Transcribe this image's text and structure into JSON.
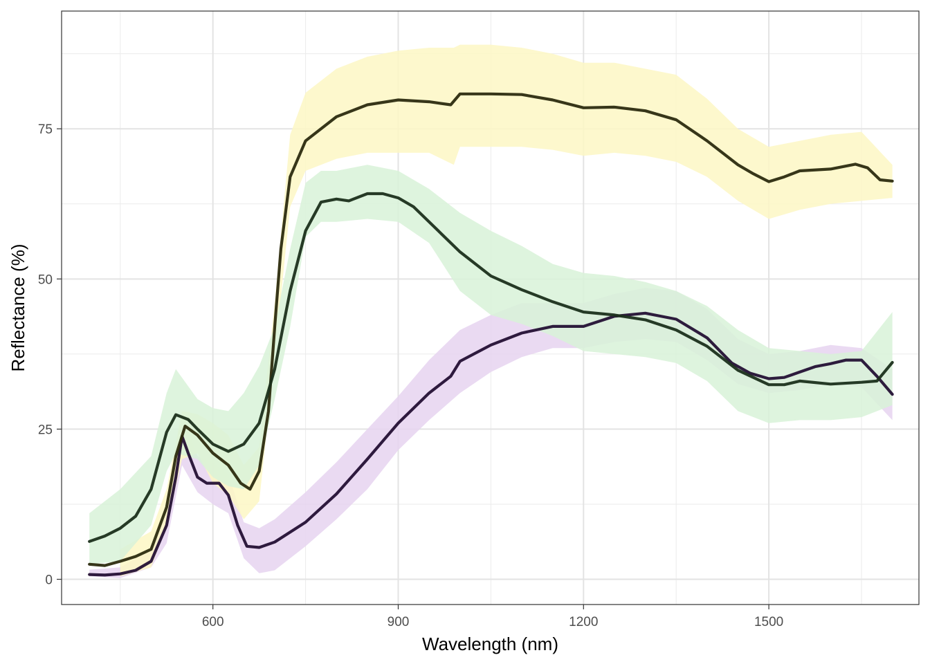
{
  "chart_data": {
    "type": "line",
    "title": "",
    "xlabel": "Wavelength (nm)",
    "ylabel": "Reflectance (%)",
    "xlim": [
      355,
      1743
    ],
    "ylim": [
      -4.2,
      94.6
    ],
    "x_ticks": [
      600,
      900,
      1200,
      1500
    ],
    "y_ticks": [
      0,
      25,
      50,
      75
    ],
    "grid": true,
    "legend": "none",
    "series": [
      {
        "color": "#241034",
        "ribbon_color": "#e6d3f0",
        "points": [
          [
            400,
            0.8
          ],
          [
            425,
            0.7
          ],
          [
            450,
            0.9
          ],
          [
            475,
            1.5
          ],
          [
            500,
            3.0
          ],
          [
            525,
            9.0
          ],
          [
            540,
            17.0
          ],
          [
            550,
            23.8
          ],
          [
            560,
            21.0
          ],
          [
            575,
            17.0
          ],
          [
            590,
            16.0
          ],
          [
            610,
            16.0
          ],
          [
            625,
            14.0
          ],
          [
            640,
            9.0
          ],
          [
            655,
            5.5
          ],
          [
            675,
            5.3
          ],
          [
            700,
            6.2
          ],
          [
            750,
            9.5
          ],
          [
            800,
            14.2
          ],
          [
            850,
            20.0
          ],
          [
            900,
            26.0
          ],
          [
            950,
            31.0
          ],
          [
            985,
            33.8
          ],
          [
            1000,
            36.3
          ],
          [
            1050,
            39.0
          ],
          [
            1100,
            41.0
          ],
          [
            1150,
            42.1
          ],
          [
            1200,
            42.1
          ],
          [
            1250,
            43.8
          ],
          [
            1300,
            44.3
          ],
          [
            1350,
            43.3
          ],
          [
            1400,
            40.2
          ],
          [
            1440,
            36.0
          ],
          [
            1470,
            34.3
          ],
          [
            1500,
            33.4
          ],
          [
            1525,
            33.6
          ],
          [
            1550,
            34.5
          ],
          [
            1575,
            35.4
          ],
          [
            1600,
            35.9
          ],
          [
            1625,
            36.5
          ],
          [
            1650,
            36.5
          ],
          [
            1675,
            33.8
          ],
          [
            1700,
            30.8
          ]
        ],
        "band": [
          [
            400,
            0.5,
            1.6
          ],
          [
            450,
            0.2,
            2.0
          ],
          [
            500,
            2.0,
            5.0
          ],
          [
            525,
            6.0,
            12.0
          ],
          [
            550,
            19.0,
            28.0
          ],
          [
            575,
            14.5,
            20.5
          ],
          [
            600,
            12.5,
            19.5
          ],
          [
            625,
            11.0,
            17.5
          ],
          [
            650,
            3.5,
            9.5
          ],
          [
            675,
            1.0,
            8.5
          ],
          [
            700,
            1.5,
            10.0
          ],
          [
            750,
            5.5,
            14.5
          ],
          [
            800,
            10.0,
            19.5
          ],
          [
            850,
            15.0,
            25.0
          ],
          [
            900,
            21.5,
            30.5
          ],
          [
            950,
            26.5,
            36.5
          ],
          [
            1000,
            31.0,
            41.5
          ],
          [
            1050,
            34.5,
            44.0
          ],
          [
            1100,
            37.0,
            46.0
          ],
          [
            1150,
            38.5,
            46.0
          ],
          [
            1200,
            38.5,
            46.0
          ],
          [
            1250,
            39.5,
            47.5
          ],
          [
            1300,
            40.0,
            48.5
          ],
          [
            1350,
            39.5,
            48.0
          ],
          [
            1400,
            36.5,
            45.0
          ],
          [
            1450,
            32.5,
            40.0
          ],
          [
            1500,
            31.0,
            37.5
          ],
          [
            1550,
            31.5,
            38.0
          ],
          [
            1600,
            32.5,
            39.0
          ],
          [
            1650,
            32.0,
            38.5
          ],
          [
            1700,
            26.5,
            35.0
          ]
        ]
      },
      {
        "color": "#2c2b0f",
        "ribbon_color": "#fdf7c4",
        "points": [
          [
            400,
            2.5
          ],
          [
            425,
            2.3
          ],
          [
            450,
            3.0
          ],
          [
            475,
            3.8
          ],
          [
            500,
            5.0
          ],
          [
            525,
            12.0
          ],
          [
            540,
            20.5
          ],
          [
            555,
            25.5
          ],
          [
            575,
            24.0
          ],
          [
            600,
            21.0
          ],
          [
            625,
            19.0
          ],
          [
            645,
            16.0
          ],
          [
            660,
            15.0
          ],
          [
            675,
            18.0
          ],
          [
            690,
            28.0
          ],
          [
            700,
            42.0
          ],
          [
            710,
            55.0
          ],
          [
            725,
            67.0
          ],
          [
            750,
            73.0
          ],
          [
            800,
            77.0
          ],
          [
            850,
            79.0
          ],
          [
            900,
            79.8
          ],
          [
            950,
            79.5
          ],
          [
            985,
            79.0
          ],
          [
            1000,
            80.8
          ],
          [
            1050,
            80.8
          ],
          [
            1100,
            80.7
          ],
          [
            1150,
            79.8
          ],
          [
            1200,
            78.5
          ],
          [
            1250,
            78.6
          ],
          [
            1300,
            78.0
          ],
          [
            1350,
            76.5
          ],
          [
            1400,
            73.0
          ],
          [
            1450,
            69.0
          ],
          [
            1475,
            67.5
          ],
          [
            1500,
            66.2
          ],
          [
            1525,
            67.0
          ],
          [
            1550,
            68.0
          ],
          [
            1600,
            68.3
          ],
          [
            1640,
            69.1
          ],
          [
            1660,
            68.5
          ],
          [
            1680,
            66.5
          ],
          [
            1700,
            66.3
          ]
        ],
        "band": [
          [
            450,
            0.5,
            5.0
          ],
          [
            500,
            2.0,
            8.0
          ],
          [
            525,
            9.0,
            15.0
          ],
          [
            550,
            20.0,
            28.0
          ],
          [
            575,
            21.0,
            27.5
          ],
          [
            600,
            16.0,
            26.0
          ],
          [
            625,
            14.0,
            24.0
          ],
          [
            650,
            10.0,
            19.0
          ],
          [
            675,
            13.0,
            22.0
          ],
          [
            700,
            37.0,
            46.0
          ],
          [
            725,
            62.0,
            74.0
          ],
          [
            750,
            68.0,
            81.0
          ],
          [
            800,
            70.0,
            85.0
          ],
          [
            850,
            71.0,
            87.0
          ],
          [
            900,
            71.0,
            88.0
          ],
          [
            950,
            71.0,
            88.5
          ],
          [
            990,
            69.0,
            88.5
          ],
          [
            1000,
            72.0,
            89.0
          ],
          [
            1050,
            72.0,
            89.0
          ],
          [
            1100,
            72.0,
            88.5
          ],
          [
            1150,
            71.5,
            87.5
          ],
          [
            1200,
            70.5,
            86.0
          ],
          [
            1250,
            71.0,
            86.0
          ],
          [
            1300,
            70.5,
            85.0
          ],
          [
            1350,
            69.5,
            84.0
          ],
          [
            1400,
            67.0,
            80.0
          ],
          [
            1450,
            63.0,
            75.0
          ],
          [
            1500,
            60.0,
            72.0
          ],
          [
            1550,
            61.5,
            73.0
          ],
          [
            1600,
            62.5,
            74.0
          ],
          [
            1650,
            63.0,
            74.5
          ],
          [
            1700,
            63.5,
            69.0
          ]
        ]
      },
      {
        "color": "#1b2f1b",
        "ribbon_color": "#d8f2d8",
        "points": [
          [
            400,
            6.3
          ],
          [
            425,
            7.2
          ],
          [
            450,
            8.5
          ],
          [
            475,
            10.5
          ],
          [
            500,
            15.0
          ],
          [
            525,
            24.5
          ],
          [
            540,
            27.4
          ],
          [
            560,
            26.6
          ],
          [
            575,
            25.0
          ],
          [
            600,
            22.5
          ],
          [
            625,
            21.3
          ],
          [
            650,
            22.5
          ],
          [
            675,
            26.0
          ],
          [
            700,
            35.0
          ],
          [
            725,
            48.0
          ],
          [
            750,
            58.0
          ],
          [
            775,
            62.8
          ],
          [
            800,
            63.3
          ],
          [
            820,
            63.0
          ],
          [
            850,
            64.2
          ],
          [
            875,
            64.2
          ],
          [
            900,
            63.5
          ],
          [
            925,
            62.0
          ],
          [
            950,
            59.5
          ],
          [
            1000,
            54.5
          ],
          [
            1050,
            50.5
          ],
          [
            1100,
            48.2
          ],
          [
            1150,
            46.2
          ],
          [
            1200,
            44.5
          ],
          [
            1250,
            44.0
          ],
          [
            1300,
            43.2
          ],
          [
            1350,
            41.5
          ],
          [
            1400,
            38.8
          ],
          [
            1450,
            34.8
          ],
          [
            1500,
            32.4
          ],
          [
            1525,
            32.4
          ],
          [
            1550,
            33.0
          ],
          [
            1600,
            32.5
          ],
          [
            1650,
            32.8
          ],
          [
            1675,
            33.0
          ],
          [
            1700,
            36.1
          ]
        ],
        "band": [
          [
            400,
            2.5,
            11.0
          ],
          [
            450,
            3.0,
            15.0
          ],
          [
            500,
            9.0,
            20.5
          ],
          [
            525,
            18.0,
            31.0
          ],
          [
            540,
            21.0,
            35.0
          ],
          [
            575,
            20.0,
            30.0
          ],
          [
            600,
            17.0,
            28.5
          ],
          [
            625,
            15.5,
            28.0
          ],
          [
            650,
            15.0,
            31.0
          ],
          [
            675,
            19.0,
            35.5
          ],
          [
            700,
            30.0,
            42.0
          ],
          [
            725,
            42.0,
            55.0
          ],
          [
            750,
            57.0,
            66.0
          ],
          [
            775,
            59.5,
            68.0
          ],
          [
            800,
            59.5,
            68.0
          ],
          [
            850,
            60.0,
            69.0
          ],
          [
            900,
            59.5,
            68.0
          ],
          [
            950,
            56.0,
            65.0
          ],
          [
            1000,
            48.0,
            61.0
          ],
          [
            1050,
            44.0,
            58.0
          ],
          [
            1100,
            42.5,
            55.5
          ],
          [
            1150,
            40.5,
            52.5
          ],
          [
            1200,
            38.0,
            51.0
          ],
          [
            1250,
            37.5,
            50.5
          ],
          [
            1300,
            37.0,
            49.5
          ],
          [
            1350,
            36.0,
            48.0
          ],
          [
            1400,
            33.0,
            45.5
          ],
          [
            1450,
            28.0,
            41.5
          ],
          [
            1500,
            26.0,
            38.5
          ],
          [
            1550,
            26.5,
            38.0
          ],
          [
            1600,
            26.5,
            37.5
          ],
          [
            1650,
            27.0,
            38.0
          ],
          [
            1700,
            29.0,
            44.5
          ]
        ]
      }
    ]
  }
}
